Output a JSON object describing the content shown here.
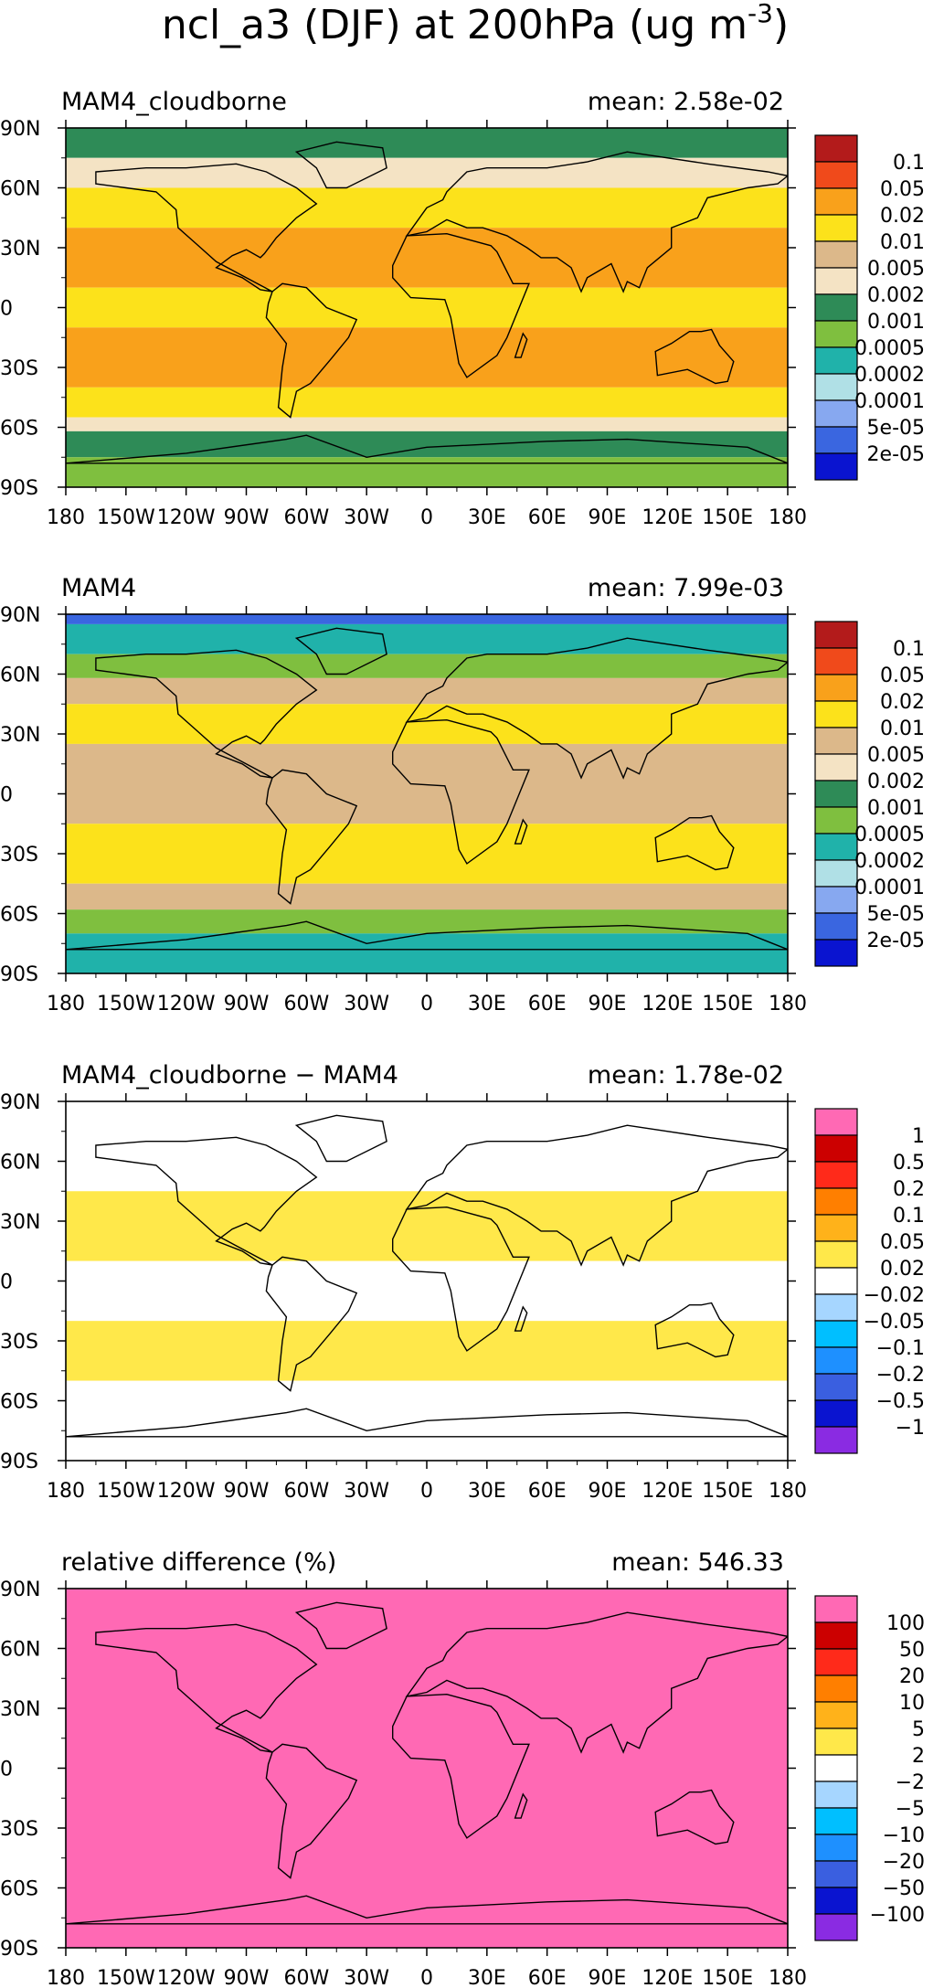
{
  "figure": {
    "title": "ncl_a3 (DJF) at 200hPa (ug m",
    "title_sup": "-3",
    "title_end": ")"
  },
  "chart_data": [
    {
      "type": "heatmap",
      "title": "MAM4_cloudborne",
      "mean_label": "mean: 2.58e-02",
      "xlim": [
        -180,
        180
      ],
      "ylim": [
        -90,
        90
      ],
      "x_ticks": [
        "180",
        "150W",
        "120W",
        "90W",
        "60W",
        "30W",
        "0",
        "30E",
        "60E",
        "90E",
        "120E",
        "150E",
        "180"
      ],
      "y_ticks": [
        "90N",
        "60N",
        "30N",
        "0",
        "30S",
        "60S",
        "90S"
      ],
      "colorbar": {
        "labels": [
          "0.1",
          "0.05",
          "0.02",
          "0.01",
          "0.005",
          "0.002",
          "0.001",
          "0.0005",
          "0.0002",
          "0.0001",
          "5e-05",
          "2e-05"
        ],
        "colors": [
          "#b31b1b",
          "#f04a1b",
          "#f9a11b",
          "#fce21b",
          "#dcb88a",
          "#f4e3c4",
          "#2e8b57",
          "#7fbf3f",
          "#20b2aa",
          "#b0e0e6",
          "#87a8f0",
          "#3a66e0",
          "#0a14d0"
        ]
      },
      "bands": [
        {
          "lat": [
            90,
            75
          ],
          "level": "0.001"
        },
        {
          "lat": [
            75,
            60
          ],
          "level": "0.002"
        },
        {
          "lat": [
            60,
            40
          ],
          "level": "0.01"
        },
        {
          "lat": [
            40,
            10
          ],
          "level": "0.02"
        },
        {
          "lat": [
            10,
            -10
          ],
          "level": "0.01"
        },
        {
          "lat": [
            -10,
            -40
          ],
          "level": "0.02"
        },
        {
          "lat": [
            -40,
            -55
          ],
          "level": "0.01"
        },
        {
          "lat": [
            -55,
            -62
          ],
          "level": "0.002"
        },
        {
          "lat": [
            -62,
            -75
          ],
          "level": "0.001"
        },
        {
          "lat": [
            -75,
            -90
          ],
          "level": "0.0005"
        }
      ]
    },
    {
      "type": "heatmap",
      "title": "MAM4",
      "mean_label": "mean: 7.99e-03",
      "xlim": [
        -180,
        180
      ],
      "ylim": [
        -90,
        90
      ],
      "x_ticks": [
        "180",
        "150W",
        "120W",
        "90W",
        "60W",
        "30W",
        "0",
        "30E",
        "60E",
        "90E",
        "120E",
        "150E",
        "180"
      ],
      "y_ticks": [
        "90N",
        "60N",
        "30N",
        "0",
        "30S",
        "60S",
        "90S"
      ],
      "colorbar": {
        "labels": [
          "0.1",
          "0.05",
          "0.02",
          "0.01",
          "0.005",
          "0.002",
          "0.001",
          "0.0005",
          "0.0002",
          "0.0001",
          "5e-05",
          "2e-05"
        ],
        "colors": [
          "#b31b1b",
          "#f04a1b",
          "#f9a11b",
          "#fce21b",
          "#dcb88a",
          "#f4e3c4",
          "#2e8b57",
          "#7fbf3f",
          "#20b2aa",
          "#b0e0e6",
          "#87a8f0",
          "#3a66e0",
          "#0a14d0"
        ]
      },
      "bands": [
        {
          "lat": [
            90,
            85
          ],
          "level": "2e-05"
        },
        {
          "lat": [
            85,
            70
          ],
          "level": "0.0002"
        },
        {
          "lat": [
            70,
            58
          ],
          "level": "0.0005"
        },
        {
          "lat": [
            58,
            45
          ],
          "level": "0.005"
        },
        {
          "lat": [
            45,
            25
          ],
          "level": "0.01"
        },
        {
          "lat": [
            25,
            -15
          ],
          "level": "0.005"
        },
        {
          "lat": [
            -15,
            -45
          ],
          "level": "0.01"
        },
        {
          "lat": [
            -45,
            -58
          ],
          "level": "0.005"
        },
        {
          "lat": [
            -58,
            -70
          ],
          "level": "0.0005"
        },
        {
          "lat": [
            -70,
            -90
          ],
          "level": "0.0002"
        }
      ]
    },
    {
      "type": "heatmap",
      "title": "MAM4_cloudborne − MAM4",
      "mean_label": "mean: 1.78e-02",
      "xlim": [
        -180,
        180
      ],
      "ylim": [
        -90,
        90
      ],
      "x_ticks": [
        "180",
        "150W",
        "120W",
        "90W",
        "60W",
        "30W",
        "0",
        "30E",
        "60E",
        "90E",
        "120E",
        "150E",
        "180"
      ],
      "y_ticks": [
        "90N",
        "60N",
        "30N",
        "0",
        "30S",
        "60S",
        "90S"
      ],
      "colorbar": {
        "labels": [
          "1",
          "0.5",
          "0.2",
          "0.1",
          "0.05",
          "0.02",
          "−0.02",
          "−0.05",
          "−0.1",
          "−0.2",
          "−0.5",
          "−1"
        ],
        "colors": [
          "#ff69b4",
          "#cc0000",
          "#ff2a1a",
          "#ff7f00",
          "#ffb21a",
          "#ffe84a",
          "#ffffff",
          "#a6d6ff",
          "#00bfff",
          "#1e90ff",
          "#3a5fe0",
          "#0a14d0",
          "#8a2be2"
        ]
      },
      "bands": [
        {
          "lat": [
            90,
            45
          ],
          "level": "0"
        },
        {
          "lat": [
            45,
            10
          ],
          "level": "0.02"
        },
        {
          "lat": [
            10,
            -20
          ],
          "level": "0"
        },
        {
          "lat": [
            -20,
            -50
          ],
          "level": "0.02"
        },
        {
          "lat": [
            -50,
            -90
          ],
          "level": "0"
        }
      ]
    },
    {
      "type": "heatmap",
      "title": "relative difference (%)",
      "mean_label": "mean: 546.33",
      "xlim": [
        -180,
        180
      ],
      "ylim": [
        -90,
        90
      ],
      "x_ticks": [
        "180",
        "150W",
        "120W",
        "90W",
        "60W",
        "30W",
        "0",
        "30E",
        "60E",
        "90E",
        "120E",
        "150E",
        "180"
      ],
      "y_ticks": [
        "90N",
        "60N",
        "30N",
        "0",
        "30S",
        "60S",
        "90S"
      ],
      "colorbar": {
        "labels": [
          "100",
          "50",
          "20",
          "10",
          "5",
          "2",
          "−2",
          "−5",
          "−10",
          "−20",
          "−50",
          "−100"
        ],
        "colors": [
          "#ff69b4",
          "#cc0000",
          "#ff2a1a",
          "#ff7f00",
          "#ffb21a",
          "#ffe84a",
          "#ffffff",
          "#a6d6ff",
          "#00bfff",
          "#1e90ff",
          "#3a5fe0",
          "#0a14d0",
          "#8a2be2"
        ]
      },
      "bands": [
        {
          "lat": [
            90,
            -90
          ],
          "level": ">100"
        }
      ]
    }
  ]
}
